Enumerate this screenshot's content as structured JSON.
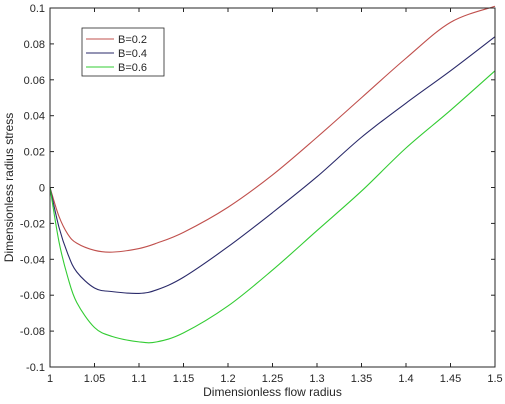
{
  "chart_data": {
    "type": "line",
    "title": "",
    "xlabel": "Dimensionless flow radius",
    "ylabel": "Dimensionless radius stress",
    "xlim": [
      1,
      1.5
    ],
    "ylim": [
      -0.1,
      0.1
    ],
    "xticks": [
      1,
      1.05,
      1.1,
      1.15,
      1.2,
      1.25,
      1.3,
      1.35,
      1.4,
      1.45,
      1.5
    ],
    "xtick_labels": [
      "1",
      "1.05",
      "1.1",
      "1.15",
      "1.2",
      "1.25",
      "1.3",
      "1.35",
      "1.4",
      "1.45",
      "1.5"
    ],
    "yticks": [
      -0.1,
      -0.08,
      -0.06,
      -0.04,
      -0.02,
      0,
      0.02,
      0.04,
      0.06,
      0.08,
      0.1
    ],
    "ytick_labels": [
      "-0.1",
      "-0.08",
      "-0.06",
      "-0.04",
      "-0.02",
      "0",
      "0.02",
      "0.04",
      "0.06",
      "0.08",
      "0.1"
    ],
    "grid": false,
    "legend_position": "top-left",
    "x": [
      1.0,
      1.01,
      1.02,
      1.03,
      1.05,
      1.07,
      1.1,
      1.12,
      1.15,
      1.2,
      1.25,
      1.3,
      1.35,
      1.4,
      1.45,
      1.5
    ],
    "series": [
      {
        "name": "B=0.2",
        "color": "#c0504d",
        "values": [
          0.0,
          -0.016,
          -0.026,
          -0.031,
          -0.035,
          -0.036,
          -0.034,
          -0.031,
          -0.025,
          -0.011,
          0.007,
          0.028,
          0.05,
          0.072,
          0.092,
          0.101
        ]
      },
      {
        "name": "B=0.4",
        "color": "#2a2a6a",
        "values": [
          0.0,
          -0.022,
          -0.037,
          -0.047,
          -0.056,
          -0.058,
          -0.059,
          -0.057,
          -0.05,
          -0.033,
          -0.014,
          0.006,
          0.028,
          0.047,
          0.065,
          0.084
        ]
      },
      {
        "name": "B=0.6",
        "color": "#33cc33",
        "values": [
          0.0,
          -0.03,
          -0.05,
          -0.064,
          -0.078,
          -0.083,
          -0.086,
          -0.086,
          -0.081,
          -0.066,
          -0.046,
          -0.024,
          -0.002,
          0.022,
          0.043,
          0.065
        ]
      }
    ]
  }
}
